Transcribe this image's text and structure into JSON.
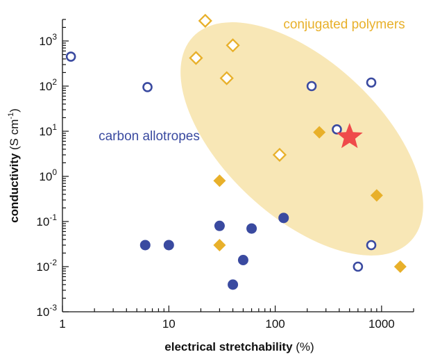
{
  "chart_data": {
    "type": "scatter",
    "title": "",
    "xlabel": {
      "bold": "electrical stretchability",
      "unit": " (%)"
    },
    "ylabel": {
      "bold": "conductivity",
      "unit": " (S cm",
      "exp": "-1",
      "close": ")"
    },
    "xscale": "log",
    "yscale": "log",
    "xlim": [
      1,
      2000
    ],
    "ylim": [
      0.001,
      3000
    ],
    "x_ticks": [
      {
        "value": 1,
        "label": "1"
      },
      {
        "value": 10,
        "label": "10"
      },
      {
        "value": 100,
        "label": "100"
      },
      {
        "value": 1000,
        "label": "1000"
      }
    ],
    "y_ticks": [
      {
        "value": 0.001,
        "base": "10",
        "exp": "-3"
      },
      {
        "value": 0.01,
        "base": "10",
        "exp": "-2"
      },
      {
        "value": 0.1,
        "base": "10",
        "exp": "-1"
      },
      {
        "value": 1,
        "base": "10",
        "exp": "0"
      },
      {
        "value": 10,
        "base": "10",
        "exp": "1"
      },
      {
        "value": 100,
        "base": "10",
        "exp": "2"
      },
      {
        "value": 1000,
        "base": "10",
        "exp": "3"
      }
    ],
    "grid": false,
    "annotations": [
      {
        "text": "conjugated polymers",
        "color": "#e8b02a",
        "near": "top-right"
      },
      {
        "text": "carbon allotropes",
        "color": "#3a4aa0",
        "near": "left-middle"
      }
    ],
    "series": [
      {
        "color": "#3a4aa0",
        "marker": "circle-open",
        "points": [
          [
            1.2,
            450
          ],
          [
            6.3,
            95
          ],
          [
            220,
            100
          ],
          [
            800,
            120
          ],
          [
            380,
            11
          ],
          [
            800,
            0.03
          ],
          [
            600,
            0.01
          ]
        ]
      },
      {
        "color": "#3a4aa0",
        "marker": "circle-filled",
        "points": [
          [
            6,
            0.03
          ],
          [
            10,
            0.03
          ],
          [
            30,
            0.08
          ],
          [
            60,
            0.07
          ],
          [
            120,
            0.12
          ],
          [
            50,
            0.014
          ],
          [
            40,
            0.004
          ]
        ]
      },
      {
        "color": "#e8b02a",
        "marker": "diamond-open",
        "points": [
          [
            22,
            2800
          ],
          [
            40,
            800
          ],
          [
            18,
            420
          ],
          [
            35,
            150
          ],
          [
            110,
            3
          ]
        ]
      },
      {
        "color": "#e8b02a",
        "marker": "diamond-filled",
        "points": [
          [
            260,
            9.5
          ],
          [
            30,
            0.8
          ],
          [
            30,
            0.03
          ],
          [
            900,
            0.38
          ],
          [
            1500,
            0.01
          ]
        ]
      },
      {
        "color": "#ef4a4a",
        "marker": "star",
        "points": [
          [
            500,
            7.5
          ]
        ]
      }
    ],
    "highlight_region": {
      "shape": "ellipse",
      "color": "#f8e7b6"
    }
  }
}
